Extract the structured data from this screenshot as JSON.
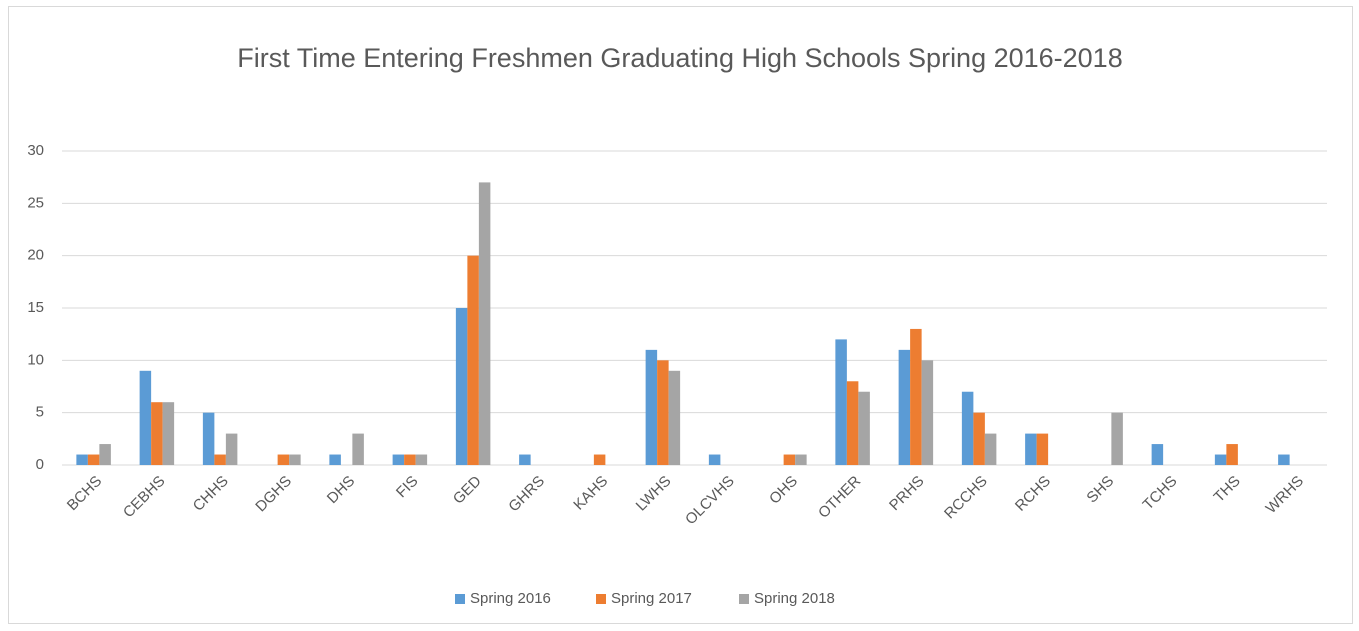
{
  "chart_data": {
    "type": "bar",
    "title": "First Time Entering Freshmen Graduating High Schools Spring 2016-2018",
    "categories": [
      "BCHS",
      "CEBHS",
      "CHHS",
      "DGHS",
      "DHS",
      "FIS",
      "GED",
      "GHRS",
      "KAHS",
      "LWHS",
      "OLCVHS",
      "OHS",
      "OTHER",
      "PRHS",
      "RCCHS",
      "RCHS",
      "SHS",
      "TCHS",
      "THS",
      "WRHS"
    ],
    "series": [
      {
        "name": "Spring 2016",
        "color": "#5b9bd5",
        "values": [
          1,
          9,
          5,
          0,
          1,
          1,
          15,
          1,
          0,
          11,
          1,
          0,
          12,
          11,
          7,
          3,
          0,
          2,
          1,
          1
        ]
      },
      {
        "name": "Spring 2017",
        "color": "#ed7d31",
        "values": [
          1,
          6,
          1,
          1,
          0,
          1,
          20,
          0,
          1,
          10,
          0,
          1,
          8,
          13,
          5,
          3,
          0,
          0,
          2,
          0
        ]
      },
      {
        "name": "Spring 2018",
        "color": "#a5a5a5",
        "values": [
          2,
          6,
          3,
          1,
          3,
          1,
          27,
          0,
          0,
          9,
          0,
          1,
          7,
          10,
          3,
          0,
          5,
          0,
          0,
          0
        ]
      }
    ],
    "ylim": [
      0,
      30
    ],
    "yticks": [
      0,
      5,
      10,
      15,
      20,
      25,
      30
    ],
    "grid": true,
    "legend": "bottom"
  }
}
